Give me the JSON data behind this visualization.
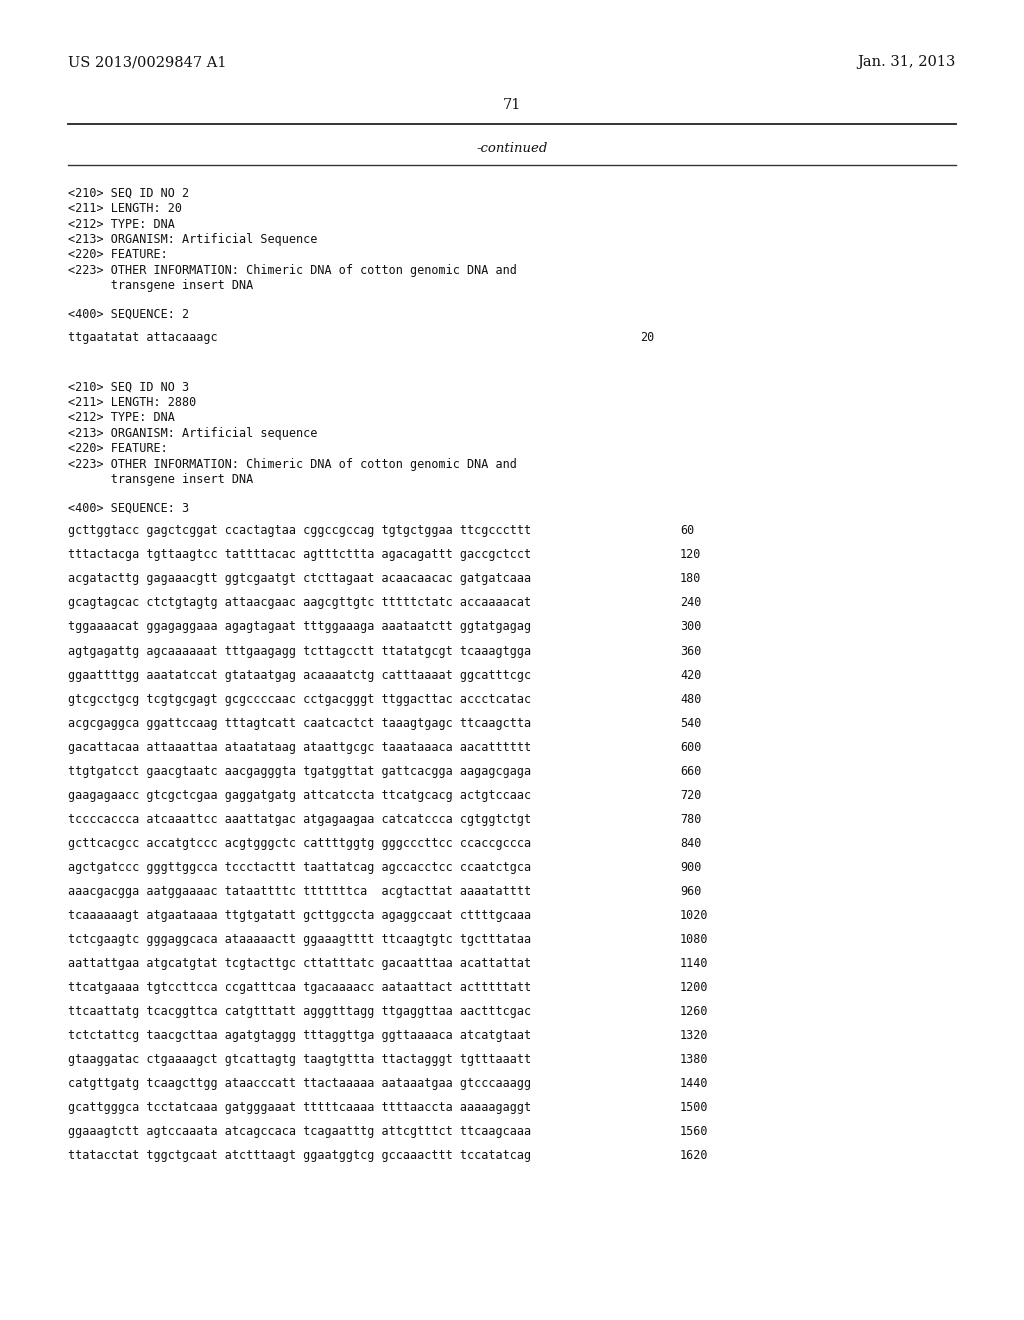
{
  "background_color": "#ffffff",
  "header_left": "US 2013/0029847 A1",
  "header_right": "Jan. 31, 2013",
  "page_number": "71",
  "continued_text": "-continued",
  "seq2_meta": [
    "<210> SEQ ID NO 2",
    "<211> LENGTH: 20",
    "<212> TYPE: DNA",
    "<213> ORGANISM: Artificial Sequence",
    "<220> FEATURE:",
    "<223> OTHER INFORMATION: Chimeric DNA of cotton genomic DNA and",
    "      transgene insert DNA"
  ],
  "seq2_label": "<400> SEQUENCE: 2",
  "seq2_data": [
    [
      "ttgaatatat attacaaagc",
      "20"
    ]
  ],
  "seq3_meta": [
    "<210> SEQ ID NO 3",
    "<211> LENGTH: 2880",
    "<212> TYPE: DNA",
    "<213> ORGANISM: Artificial sequence",
    "<220> FEATURE:",
    "<223> OTHER INFORMATION: Chimeric DNA of cotton genomic DNA and",
    "      transgene insert DNA"
  ],
  "seq3_label": "<400> SEQUENCE: 3",
  "seq3_data": [
    [
      "gcttggtacc gagctcggat ccactagtaa cggccgccag tgtgctggaa ttcgcccttt",
      "60"
    ],
    [
      "tttactacga tgttaagtcc tattttacac agtttcttta agacagattt gaccgctcct",
      "120"
    ],
    [
      "acgatacttg gagaaacgtt ggtcgaatgt ctcttagaat acaacaacac gatgatcaaa",
      "180"
    ],
    [
      "gcagtagcac ctctgtagtg attaacgaac aagcgttgtc tttttctatc accaaaacat",
      "240"
    ],
    [
      "tggaaaacat ggagaggaaa agagtagaat tttggaaaga aaataatctt ggtatgagag",
      "300"
    ],
    [
      "agtgagattg agcaaaaaat tttgaagagg tcttagcctt ttatatgcgt tcaaagtgga",
      "360"
    ],
    [
      "ggaattttgg aaatatccat gtataatgag acaaaatctg catttaaaat ggcatttcgc",
      "420"
    ],
    [
      "gtcgcctgcg tcgtgcgagt gcgccccaac cctgacgggt ttggacttac accctcatac",
      "480"
    ],
    [
      "acgcgaggca ggattccaag tttagtcatt caatcactct taaagtgagc ttcaagctta",
      "540"
    ],
    [
      "gacattacaa attaaattaa ataatataag ataattgcgc taaataaaca aacatttttt",
      "600"
    ],
    [
      "ttgtgatcct gaacgtaatc aacgagggta tgatggttat gattcacgga aagagcgaga",
      "660"
    ],
    [
      "gaagagaacc gtcgctcgaa gaggatgatg attcatccta ttcatgcacg actgtccaac",
      "720"
    ],
    [
      "tccccaccca atcaaattcc aaattatgac atgagaagaa catcatccca cgtggtctgt",
      "780"
    ],
    [
      "gcttcacgcc accatgtccc acgtgggctc cattttggtg gggcccttcc ccaccgccca",
      "840"
    ],
    [
      "agctgatccc gggttggcca tccctacttt taattatcag agccacctcc ccaatctgca",
      "900"
    ],
    [
      "aaacgacgga aatggaaaac tataattttc tttttttca  acgtacttat aaaatatttt",
      "960"
    ],
    [
      "tcaaaaaagt atgaataaaa ttgtgatatt gcttggccta agaggccaat cttttgcaaa",
      "1020"
    ],
    [
      "tctcgaagtc gggaggcaca ataaaaactt ggaaagtttt ttcaagtgtc tgctttataa",
      "1080"
    ],
    [
      "aattattgaa atgcatgtat tcgtacttgc cttatttatc gacaatttaa acattattat",
      "1140"
    ],
    [
      "ttcatgaaaa tgtccttcca ccgatttcaa tgacaaaacc aataattact actttttatt",
      "1200"
    ],
    [
      "ttcaattatg tcacggttca catgtttatt agggtttagg ttgaggttaa aactttcgac",
      "1260"
    ],
    [
      "tctctattcg taacgcttaa agatgtaggg tttaggttga ggttaaaaca atcatgtaat",
      "1320"
    ],
    [
      "gtaaggatac ctgaaaagct gtcattagtg taagtgttta ttactagggt tgtttaaatt",
      "1380"
    ],
    [
      "catgttgatg tcaagcttgg ataacccatt ttactaaaaa aataaatgaa gtcccaaagg",
      "1440"
    ],
    [
      "gcattgggca tcctatcaaa gatgggaaat tttttcaaaa ttttaaccta aaaaagaggt",
      "1500"
    ],
    [
      "ggaaagtctt agtccaaata atcagccaca tcagaatttg attcgtttct ttcaagcaaa",
      "1560"
    ],
    [
      "ttatacctat tggctgcaat atctttaagt ggaatggtcg gccaaacttt tccatatcag",
      "1620"
    ]
  ]
}
